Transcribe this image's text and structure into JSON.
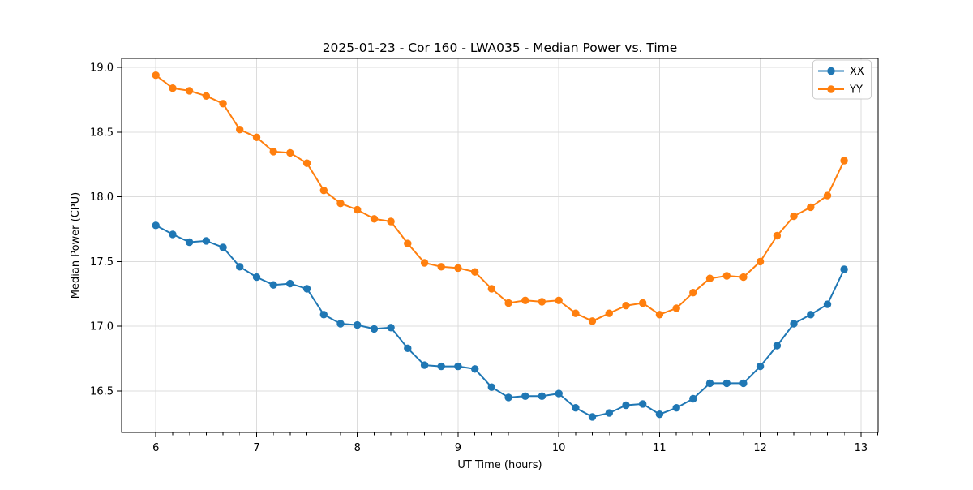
{
  "chart_data": {
    "type": "line",
    "title": "2025-01-23 - Cor 160 - LWA035 - Median Power vs. Time",
    "xlabel": "UT Time (hours)",
    "ylabel": "Median Power (CPU)",
    "x": [
      6.0,
      6.167,
      6.333,
      6.5,
      6.667,
      6.833,
      7.0,
      7.167,
      7.333,
      7.5,
      7.667,
      7.833,
      8.0,
      8.167,
      8.333,
      8.5,
      8.667,
      8.833,
      9.0,
      9.167,
      9.333,
      9.5,
      9.667,
      9.833,
      10.0,
      10.167,
      10.333,
      10.5,
      10.667,
      10.833,
      11.0,
      11.167,
      11.333,
      11.5,
      11.667,
      11.833,
      12.0,
      12.167,
      12.333,
      12.5,
      12.667,
      12.833
    ],
    "series": [
      {
        "name": "XX",
        "color": "#1f77b4",
        "values": [
          17.78,
          17.71,
          17.65,
          17.66,
          17.61,
          17.46,
          17.38,
          17.32,
          17.33,
          17.29,
          17.09,
          17.02,
          17.01,
          16.98,
          16.99,
          16.83,
          16.7,
          16.69,
          16.69,
          16.67,
          16.53,
          16.45,
          16.46,
          16.46,
          16.48,
          16.37,
          16.3,
          16.33,
          16.39,
          16.4,
          16.32,
          16.37,
          16.44,
          16.56,
          16.56,
          16.56,
          16.69,
          16.85,
          17.02,
          17.09,
          17.17,
          17.44
        ]
      },
      {
        "name": "YY",
        "color": "#ff7f0e",
        "values": [
          18.94,
          18.84,
          18.82,
          18.78,
          18.72,
          18.52,
          18.46,
          18.35,
          18.34,
          18.26,
          18.05,
          17.95,
          17.9,
          17.83,
          17.81,
          17.64,
          17.49,
          17.46,
          17.45,
          17.42,
          17.29,
          17.18,
          17.2,
          17.19,
          17.2,
          17.1,
          17.04,
          17.1,
          17.16,
          17.18,
          17.09,
          17.14,
          17.26,
          17.37,
          17.39,
          17.38,
          17.5,
          17.7,
          17.85,
          17.92,
          18.01,
          18.28
        ]
      }
    ],
    "xticks": [
      6,
      7,
      8,
      9,
      10,
      11,
      12,
      13
    ],
    "yticks": [
      16.5,
      17.0,
      17.5,
      18.0,
      18.5,
      19.0
    ],
    "xlim": [
      5.66,
      13.17
    ],
    "ylim": [
      16.18,
      19.07
    ],
    "grid": true,
    "grid_color": "#dcdcdc",
    "minor_tick_step_x": 0.1666667,
    "legend": {
      "position": "upper right",
      "entries": [
        "XX",
        "YY"
      ]
    },
    "marker": "circle"
  }
}
